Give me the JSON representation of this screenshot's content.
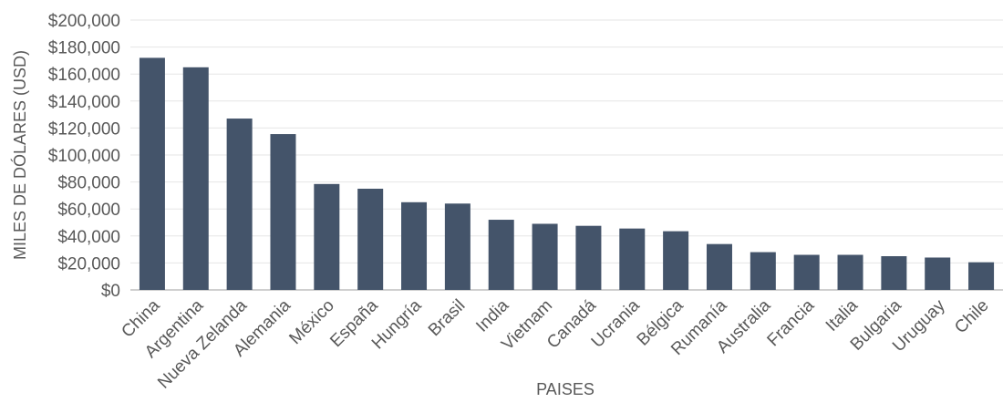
{
  "chart_data": {
    "type": "bar",
    "title": "",
    "xlabel": "PAISES",
    "ylabel": "MILES DE DÓLARES (USD)",
    "ylim": [
      0,
      200000
    ],
    "ytick_labels": [
      "$0",
      "$20,000",
      "$40,000",
      "$60,000",
      "$80,000",
      "$100,000",
      "$120,000",
      "$140,000",
      "$160,000",
      "$180,000",
      "$200,000"
    ],
    "grid": true,
    "legend": "none",
    "bar_color": "#44546a",
    "categories": [
      "China",
      "Argentina",
      "Nueva Zelanda",
      "Alemania",
      "México",
      "España",
      "Hungría",
      "Brasil",
      "India",
      "Vietnam",
      "Canadá",
      "Ucrania",
      "Bélgica",
      "Rumanía",
      "Australia",
      "Francia",
      "Italia",
      "Bulgaria",
      "Uruguay",
      "Chile"
    ],
    "values": [
      172000,
      165000,
      127000,
      115500,
      78500,
      75000,
      65000,
      64000,
      52000,
      49000,
      47500,
      45500,
      43500,
      34000,
      28000,
      26000,
      26000,
      25000,
      24000,
      20500
    ]
  }
}
